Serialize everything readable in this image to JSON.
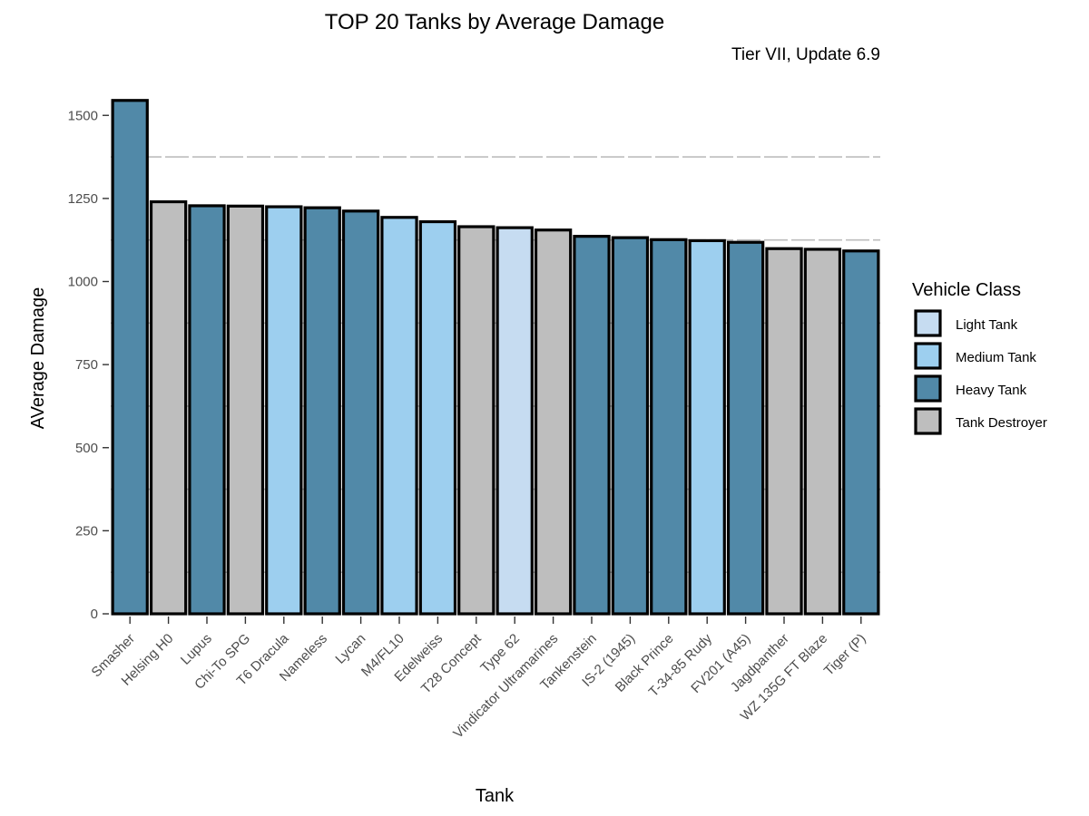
{
  "chart_data": {
    "type": "bar",
    "title": "TOP 20 Tanks by Average Damage",
    "subtitle": "Tier VII, Update 6.9",
    "xlabel": "Tank",
    "ylabel": "AVerage Damage",
    "ylim": [
      0,
      1550
    ],
    "yticks": [
      0,
      250,
      500,
      750,
      1000,
      1250,
      1500
    ],
    "grid": "dashed horizontal lines at minor breaks",
    "legend": {
      "title": "Vehicle Class",
      "position": "right",
      "entries": [
        "Light Tank",
        "Medium Tank",
        "Heavy Tank",
        "Tank Destroyer"
      ]
    },
    "colors": {
      "Light Tank": "#c6dcf1",
      "Medium Tank": "#9dcfef",
      "Heavy Tank": "#5189a8",
      "Tank Destroyer": "#bebebe"
    },
    "categories": [
      "Smasher",
      "Helsing H0",
      "Lupus",
      "Chi-To SPG",
      "T6 Dracula",
      "Nameless",
      "Lycan",
      "M4/FL10",
      "Edelweiss",
      "T28 Concept",
      "Type 62",
      "Vindicator Ultramarines",
      "Tankenstein",
      "IS-2 (1945)",
      "Black Prince",
      "T-34-85 Rudy",
      "FV201 (A45)",
      "Jagdpanther",
      "WZ 135G FT Blaze",
      "Tiger (P)"
    ],
    "values": [
      1545,
      1240,
      1228,
      1227,
      1225,
      1222,
      1212,
      1193,
      1180,
      1165,
      1162,
      1155,
      1136,
      1132,
      1126,
      1123,
      1118,
      1099,
      1097,
      1092
    ],
    "classes": [
      "Heavy Tank",
      "Tank Destroyer",
      "Heavy Tank",
      "Tank Destroyer",
      "Medium Tank",
      "Heavy Tank",
      "Heavy Tank",
      "Medium Tank",
      "Medium Tank",
      "Tank Destroyer",
      "Light Tank",
      "Tank Destroyer",
      "Heavy Tank",
      "Heavy Tank",
      "Heavy Tank",
      "Medium Tank",
      "Heavy Tank",
      "Tank Destroyer",
      "Tank Destroyer",
      "Heavy Tank"
    ]
  }
}
